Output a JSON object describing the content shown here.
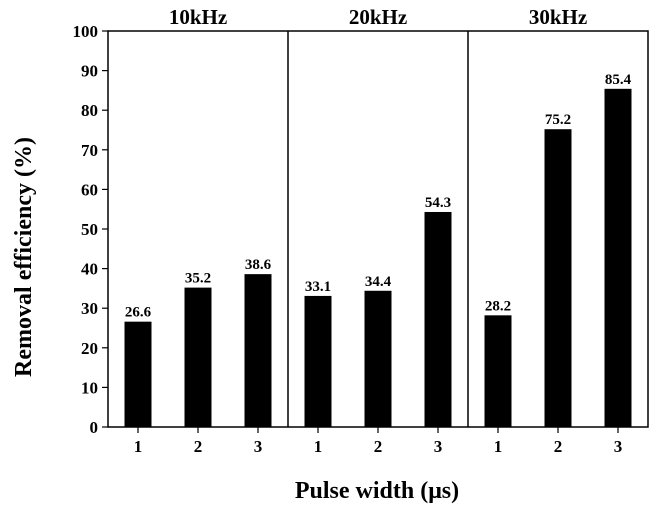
{
  "chart_data": {
    "type": "bar",
    "xlabel": "Pulse width (μs)",
    "ylabel": "Removal efficiency (%)",
    "ylim": [
      0,
      100
    ],
    "yticks": [
      0,
      10,
      20,
      30,
      40,
      50,
      60,
      70,
      80,
      90,
      100
    ],
    "grid": false,
    "legend": "none",
    "bar_color": "#000000",
    "groups": [
      {
        "title": "10kHz",
        "categories": [
          "1",
          "2",
          "3"
        ],
        "values": [
          26.6,
          35.2,
          38.6
        ],
        "labels": [
          "26.6",
          "35.2",
          "38.6"
        ]
      },
      {
        "title": "20kHz",
        "categories": [
          "1",
          "2",
          "3"
        ],
        "values": [
          33.1,
          34.4,
          54.3
        ],
        "labels": [
          "33.1",
          "34.4",
          "54.3"
        ]
      },
      {
        "title": "30kHz",
        "categories": [
          "1",
          "2",
          "3"
        ],
        "values": [
          28.2,
          75.2,
          85.4
        ],
        "labels": [
          "28.2",
          "75.2",
          "85.4"
        ]
      }
    ]
  }
}
